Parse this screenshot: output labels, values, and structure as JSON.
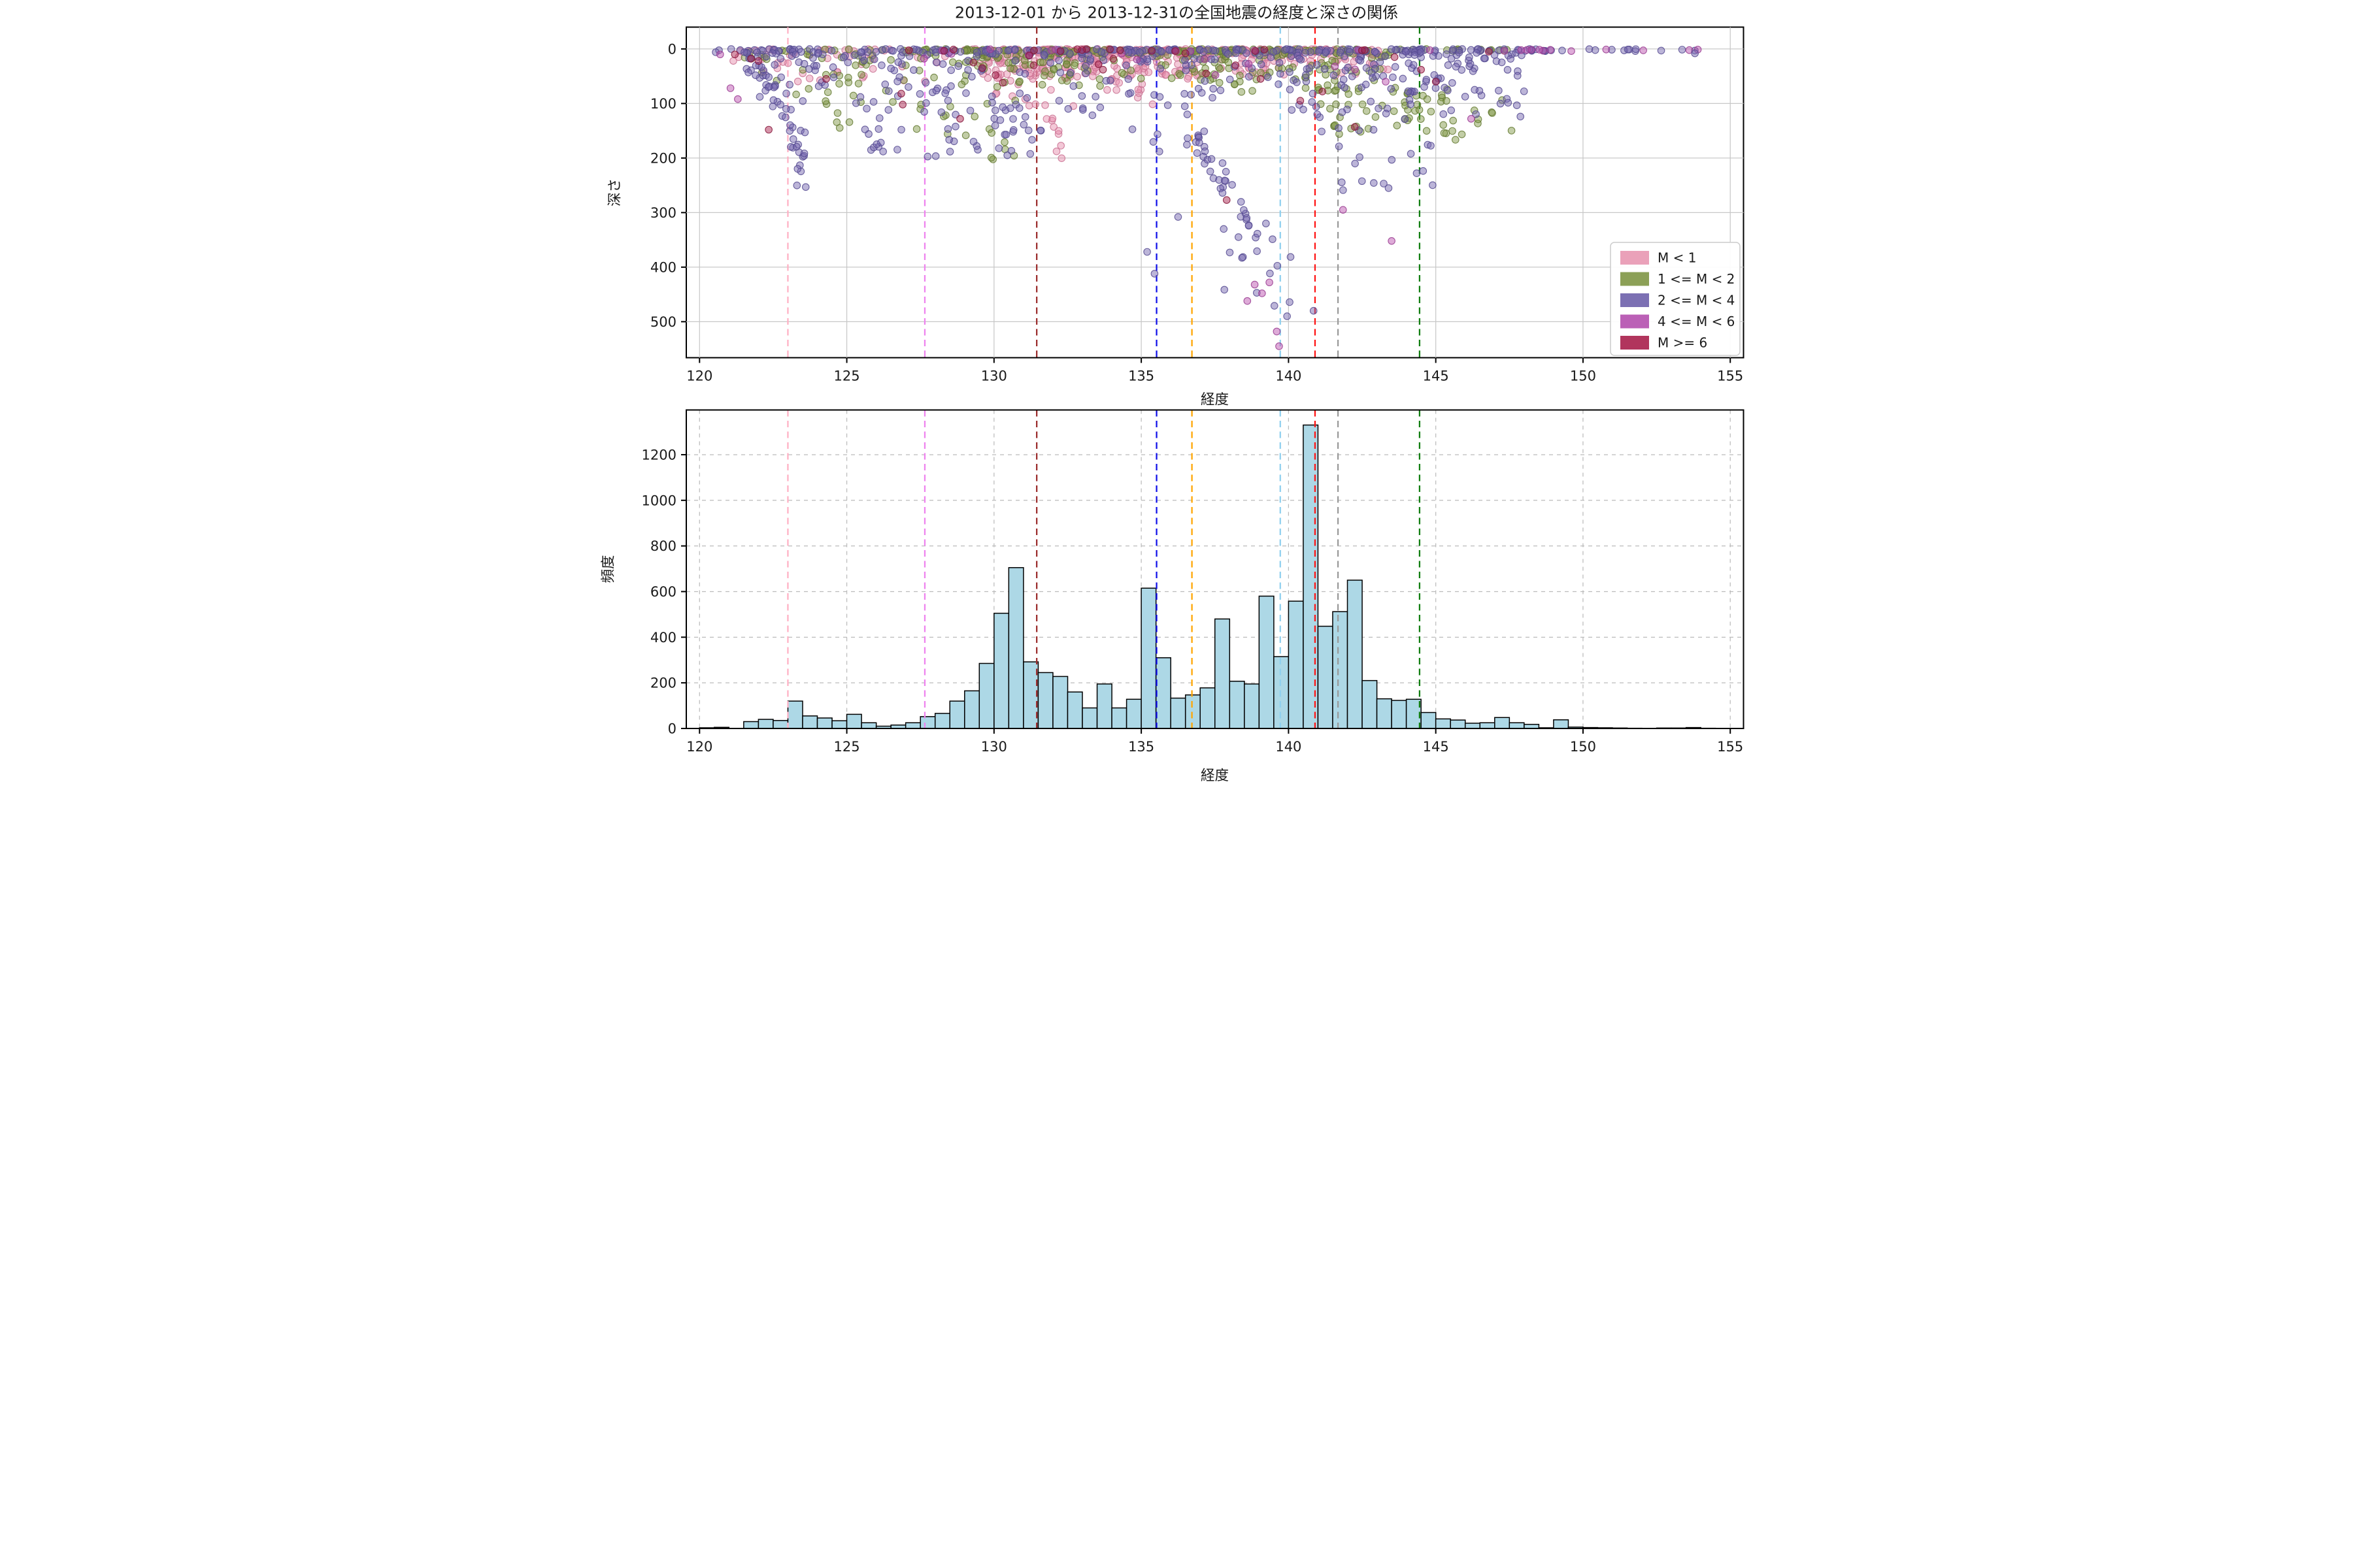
{
  "figure": {
    "title": "2013-12-01 から 2013-12-31の全国地震の経度と深さの関係",
    "background": "#ffffff"
  },
  "chart_data": [
    {
      "type": "scatter",
      "xlabel": "経度",
      "ylabel": "深さ",
      "xlim": [
        119.55,
        155.45
      ],
      "ylim_depth": [
        -40,
        566
      ],
      "xticks": [
        120,
        125,
        130,
        135,
        140,
        145,
        150,
        155
      ],
      "yticks": [
        0,
        100,
        200,
        300,
        400,
        500
      ],
      "grid": "solid",
      "grid_color": "#c8c8c8",
      "point_alpha": 0.48,
      "legend": {
        "position": "lower right",
        "entries": [
          {
            "key": "m0",
            "label": "M < 1"
          },
          {
            "key": "m1_2",
            "label": "1 <= M < 2"
          },
          {
            "key": "m2_4",
            "label": "2 <= M < 4"
          },
          {
            "key": "m4_6",
            "label": "4 <= M < 6"
          },
          {
            "key": "m6",
            "label": "M >= 6"
          }
        ]
      },
      "classes": {
        "m0": {
          "fill": "#e58dab",
          "edge": "#c97192",
          "swatch": "#e897b1"
        },
        "m1_2": {
          "fill": "#7f9645",
          "edge": "#647a32",
          "swatch": "#7f9645"
        },
        "m2_4": {
          "fill": "#7264ae",
          "edge": "#554a90",
          "swatch": "#6e60ab"
        },
        "m4_6": {
          "fill": "#b94fae",
          "edge": "#97398f",
          "swatch": "#b44fae"
        },
        "m6": {
          "fill": "#a81f4b",
          "edge": "#851639",
          "swatch": "#a81f4b"
        }
      },
      "vlines": [
        {
          "lon": 123.0,
          "color": "#ffb0c4"
        },
        {
          "lon": 127.65,
          "color": "#ee82ee"
        },
        {
          "lon": 131.45,
          "color": "#9b2c2c"
        },
        {
          "lon": 135.52,
          "color": "#0f0fe8"
        },
        {
          "lon": 136.72,
          "color": "#ffa500"
        },
        {
          "lon": 139.72,
          "color": "#8fd0ee"
        },
        {
          "lon": 140.9,
          "color": "#ff1414"
        },
        {
          "lon": 141.68,
          "color": "#999999"
        },
        {
          "lon": 144.45,
          "color": "#0f7d0f"
        }
      ],
      "clusters": [
        {
          "class": "m0",
          "mode": "surface",
          "n": 15,
          "lon": [
            121.0,
            128.5
          ]
        },
        {
          "class": "m0",
          "mode": "surface",
          "n": 90,
          "lon": [
            128.5,
            143.0
          ]
        },
        {
          "class": "m0",
          "mode": "shallow",
          "n": 40,
          "lon": [
            121.0,
            128.5
          ],
          "depth": [
            3,
            60
          ]
        },
        {
          "class": "m0",
          "mode": "shallow",
          "n": 250,
          "lon": [
            129.5,
            136.8
          ],
          "depth": [
            3,
            55
          ]
        },
        {
          "class": "m0",
          "mode": "shallow",
          "n": 115,
          "lon": [
            136.8,
            143.5
          ],
          "depth": [
            3,
            50
          ]
        },
        {
          "class": "m0",
          "mode": "uniform",
          "n": 22,
          "lon": [
            130.0,
            135.5
          ],
          "depth": [
            55,
            105
          ]
        },
        {
          "class": "m0",
          "mode": "diag",
          "n": 9,
          "from": [
            131.9,
            120
          ],
          "to": [
            132.4,
            205
          ],
          "jlon": 0.15,
          "jdepth": 15
        },
        {
          "class": "m1_2",
          "mode": "surface",
          "n": 70,
          "lon": [
            122.5,
            147.5
          ]
        },
        {
          "class": "m1_2",
          "mode": "shallow",
          "n": 125,
          "lon": [
            129.0,
            137.0
          ],
          "depth": [
            3,
            70
          ]
        },
        {
          "class": "m1_2",
          "mode": "shallow",
          "n": 105,
          "lon": [
            137.0,
            143.5
          ],
          "depth": [
            3,
            80
          ]
        },
        {
          "class": "m1_2",
          "mode": "shallow",
          "n": 48,
          "lon": [
            121.5,
            129.0
          ],
          "depth": [
            3,
            90
          ]
        },
        {
          "class": "m1_2",
          "mode": "uniform",
          "n": 55,
          "lon": [
            141.0,
            147.6
          ],
          "depth": [
            60,
            170
          ]
        },
        {
          "class": "m1_2",
          "mode": "uniform",
          "n": 24,
          "lon": [
            124.0,
            131.0
          ],
          "depth": [
            60,
            160
          ]
        },
        {
          "class": "m1_2",
          "mode": "uniform",
          "n": 6,
          "lon": [
            129.8,
            130.8
          ],
          "depth": [
            150,
            205
          ]
        },
        {
          "class": "m1_2",
          "mode": "uniform",
          "n": 8,
          "lon": [
            143.9,
            144.6
          ],
          "depth": [
            95,
            135
          ]
        },
        {
          "class": "m2_4",
          "mode": "surface",
          "n": 30,
          "lon": [
            120.5,
            128.0
          ]
        },
        {
          "class": "m2_4",
          "mode": "surface",
          "n": 95,
          "lon": [
            128.0,
            147.0
          ]
        },
        {
          "class": "m2_4",
          "mode": "surface",
          "n": 26,
          "lon": [
            147.0,
            154.0
          ]
        },
        {
          "class": "m2_4",
          "mode": "shallow",
          "n": 115,
          "lon": [
            121.5,
            131.0
          ],
          "depth": [
            5,
            100
          ]
        },
        {
          "class": "m2_4",
          "mode": "shallow",
          "n": 85,
          "lon": [
            131.0,
            140.0
          ],
          "depth": [
            5,
            90
          ]
        },
        {
          "class": "m2_4",
          "mode": "shallow",
          "n": 145,
          "lon": [
            140.0,
            148.0
          ],
          "depth": [
            5,
            130
          ]
        },
        {
          "class": "m2_4",
          "mode": "diag",
          "n": 28,
          "from": [
            122.35,
            55
          ],
          "to": [
            123.5,
            185
          ],
          "jlon": 0.3,
          "jdepth": 22
        },
        {
          "class": "m2_4",
          "mode": "uniform",
          "n": 7,
          "lon": [
            123.3,
            123.65
          ],
          "depth": [
            185,
            255
          ]
        },
        {
          "class": "m2_4",
          "mode": "uniform",
          "n": 28,
          "lon": [
            125.5,
            129.5
          ],
          "depth": [
            100,
            205
          ]
        },
        {
          "class": "m2_4",
          "mode": "uniform",
          "n": 24,
          "lon": [
            130.0,
            131.6
          ],
          "depth": [
            90,
            195
          ]
        },
        {
          "class": "m2_4",
          "mode": "uniform",
          "n": 16,
          "lon": [
            132.0,
            137.0
          ],
          "depth": [
            90,
            200
          ]
        },
        {
          "class": "m2_4",
          "mode": "diag",
          "n": 38,
          "from": [
            136.6,
            150
          ],
          "to": [
            139.6,
            385
          ],
          "jlon": 0.25,
          "jdepth": 30
        },
        {
          "class": "m2_4",
          "mode": "uniform",
          "n": 8,
          "lon": [
            137.6,
            140.4
          ],
          "depth": [
            360,
            500
          ]
        },
        {
          "class": "m2_4",
          "mode": "uniform",
          "n": 20,
          "lon": [
            141.0,
            145.0
          ],
          "depth": [
            130,
            265
          ]
        },
        {
          "class": "m4_6",
          "mode": "surface",
          "n": 12,
          "lon": [
            147.2,
            153.9
          ]
        },
        {
          "class": "m4_6",
          "mode": "surface",
          "n": 9,
          "lon": [
            128.0,
            147.0
          ]
        },
        {
          "class": "m4_6",
          "mode": "uniform",
          "n": 10,
          "lon": [
            122.0,
            147.0
          ],
          "depth": [
            5,
            60
          ]
        },
        {
          "class": "m6",
          "mode": "surface",
          "n": 16,
          "lon": [
            126.0,
            147.0
          ]
        }
      ],
      "singles": [
        {
          "class": "m2_4",
          "points": [
            [
              135.45,
              412
            ],
            [
              135.2,
              372
            ],
            [
              136.25,
              308
            ],
            [
              140.85,
              480
            ],
            [
              153.8,
              8
            ],
            [
              120.55,
              6
            ],
            [
              139.95,
              490
            ],
            [
              138.3,
              345
            ],
            [
              137.8,
              330
            ]
          ]
        },
        {
          "class": "m4_6",
          "points": [
            [
              121.05,
              72
            ],
            [
              121.3,
              92
            ],
            [
              138.85,
              432
            ],
            [
              139.1,
              448
            ],
            [
              138.6,
              462
            ],
            [
              139.35,
              428
            ],
            [
              139.6,
              518
            ],
            [
              139.68,
              545
            ],
            [
              141.85,
              295
            ],
            [
              143.5,
              352
            ],
            [
              146.2,
              128
            ],
            [
              143.3,
              60
            ],
            [
              120.7,
              10
            ]
          ]
        },
        {
          "class": "m6",
          "points": [
            [
              121.75,
              18
            ],
            [
              122.0,
              22
            ],
            [
              121.2,
              10
            ],
            [
              122.35,
              148
            ],
            [
              124.3,
              55
            ],
            [
              126.85,
              82
            ],
            [
              126.9,
              102
            ],
            [
              128.85,
              128
            ],
            [
              129.3,
              25
            ],
            [
              129.6,
              35
            ],
            [
              130.05,
              48
            ],
            [
              130.3,
              62
            ],
            [
              131.2,
              12
            ],
            [
              131.35,
              30
            ],
            [
              133.55,
              28
            ],
            [
              133.7,
              38
            ],
            [
              134.05,
              18
            ],
            [
              136.5,
              8
            ],
            [
              137.9,
              277
            ],
            [
              137.2,
              45
            ],
            [
              138.2,
              30
            ],
            [
              139.05,
              55
            ],
            [
              140.4,
              95
            ],
            [
              141.15,
              78
            ],
            [
              142.25,
              143
            ],
            [
              144.5,
              38
            ],
            [
              145.0,
              60
            ],
            [
              143.6,
              15
            ],
            [
              146.8,
              5
            ]
          ]
        }
      ]
    },
    {
      "type": "bar",
      "xlabel": "経度",
      "ylabel": "頻度",
      "xlim": [
        119.55,
        155.45
      ],
      "ylim": [
        0,
        1396
      ],
      "xticks": [
        120,
        125,
        130,
        135,
        140,
        145,
        150,
        155
      ],
      "yticks": [
        0,
        200,
        400,
        600,
        800,
        1000,
        1200
      ],
      "grid": "dashed",
      "grid_color": "#bbbbbb",
      "bar_color": "#add8e6",
      "bar_edge": "#000000",
      "bin_start": 120.0,
      "bin_width": 0.5,
      "values": [
        3,
        5,
        0,
        30,
        40,
        35,
        120,
        55,
        46,
        34,
        62,
        25,
        10,
        15,
        25,
        52,
        66,
        120,
        165,
        285,
        505,
        705,
        292,
        245,
        228,
        160,
        90,
        195,
        90,
        128,
        615,
        310,
        133,
        147,
        178,
        480,
        207,
        195,
        580,
        315,
        558,
        1330,
        448,
        512,
        650,
        210,
        130,
        123,
        128,
        70,
        42,
        37,
        23,
        25,
        48,
        25,
        18,
        3,
        38,
        6,
        4,
        3,
        2,
        1,
        0,
        2,
        2,
        4,
        1,
        0
      ]
    }
  ]
}
